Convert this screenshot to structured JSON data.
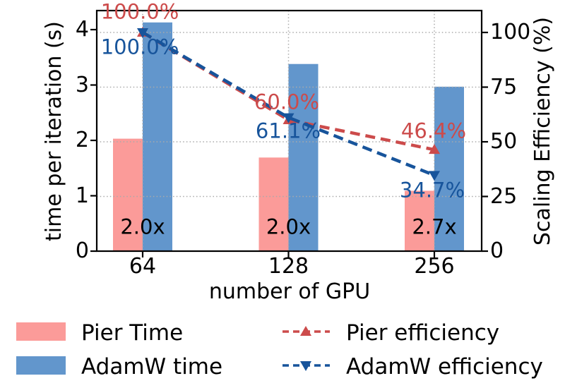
{
  "chart_data": {
    "type": "bar+line",
    "title": "",
    "categories": [
      "64",
      "128",
      "256"
    ],
    "xlabel": "number of GPU",
    "ylabel_left": "time per iteration (s)",
    "ylabel_right": "Scaling Efficiency (%)",
    "yticks_left": [
      "0",
      "1",
      "2",
      "3",
      "4"
    ],
    "yticks_right": [
      "0",
      "25",
      "50",
      "75",
      "100"
    ],
    "ylim_left": [
      0,
      4.35
    ],
    "ylim_right": [
      0,
      108.5
    ],
    "grid": "dotted",
    "grid_color": "#aaaaaa",
    "legend_position": "below",
    "bar_series": [
      {
        "name": "Pier Time",
        "color": "#FB9B99",
        "values": [
          2.03,
          1.69,
          1.09
        ]
      },
      {
        "name": "AdamW time",
        "color": "#6296CC",
        "values": [
          4.13,
          3.38,
          2.97
        ]
      }
    ],
    "line_series": [
      {
        "name": "Pier efficiency",
        "color": "#CC4B4B",
        "marker": "triangle-up",
        "values": [
          100.0,
          60.0,
          46.4
        ],
        "point_labels": [
          "100.0%",
          "60.0%",
          "46.4%"
        ]
      },
      {
        "name": "AdamW efficiency",
        "color": "#17549B",
        "marker": "triangle-down",
        "values": [
          100.0,
          61.1,
          34.7
        ],
        "point_labels": [
          "100.0%",
          "61.1%",
          "34.7%"
        ]
      }
    ],
    "bar_group_labels": [
      "2.0x",
      "2.0x",
      "2.7x"
    ]
  }
}
